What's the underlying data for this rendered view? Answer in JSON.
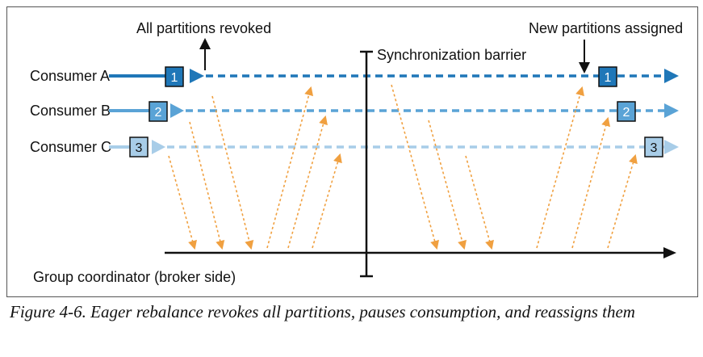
{
  "diagram": {
    "label_revoked": "All partitions revoked",
    "label_assigned": "New partitions assigned",
    "label_barrier": "Synchronization barrier",
    "label_coordinator": "Group coordinator (broker side)",
    "consumers": [
      {
        "name": "Consumer A",
        "partition": "1",
        "color": "#1f77b8"
      },
      {
        "name": "Consumer B",
        "partition": "2",
        "color": "#5aa3d6"
      },
      {
        "name": "Consumer C",
        "partition": "3",
        "color": "#a8cde8"
      }
    ],
    "message_color": "#f0a040"
  },
  "caption": "Figure 4-6. Eager rebalance revokes all partitions, pauses consumption, and reassigns them"
}
